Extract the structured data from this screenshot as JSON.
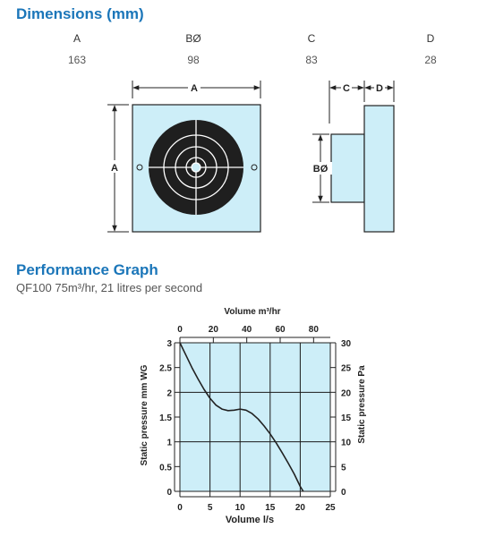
{
  "dimensions": {
    "title": "Dimensions (mm)",
    "headers": [
      "A",
      "BØ",
      "C",
      "D"
    ],
    "values": [
      "163",
      "98",
      "83",
      "28"
    ]
  },
  "drawing": {
    "front_label_top": "A",
    "front_label_side": "A",
    "side_label_c": "C",
    "side_label_d": "D",
    "side_label_b": "BØ"
  },
  "performance": {
    "title": "Performance Graph",
    "subtitle": "QF100 75m³/hr, 21 litres per second"
  },
  "chart_data": {
    "type": "line",
    "title": "",
    "xlabel": "Volume l/s",
    "x2label": "Volume m³/hr",
    "ylabel": "Static pressure mm WG",
    "y2label": "Static pressure Pa",
    "xlim": [
      0,
      25
    ],
    "ylim": [
      0,
      3
    ],
    "x2lim": [
      0,
      90
    ],
    "y2lim": [
      0,
      30
    ],
    "x_ticks": [
      "0",
      "5",
      "10",
      "15",
      "20",
      "25"
    ],
    "x2_ticks": [
      "0",
      "20",
      "40",
      "60",
      "80"
    ],
    "y_ticks": [
      "0",
      "0.5",
      "1",
      "1.5",
      "2",
      "2.5",
      "3"
    ],
    "y2_ticks": [
      "0",
      "5",
      "10",
      "15",
      "20",
      "25",
      "30"
    ],
    "grid": true,
    "colors": {
      "plot_bg": "#cdeef8",
      "curve": "#222222",
      "grid": "#1a1a1a"
    },
    "series": [
      {
        "x": [
          0,
          1,
          2,
          3,
          4,
          5,
          6,
          7,
          8,
          9,
          10,
          11,
          12,
          13,
          14,
          15,
          16,
          17,
          18,
          19,
          20,
          20.5
        ],
        "y": [
          3.0,
          2.75,
          2.5,
          2.27,
          2.06,
          1.88,
          1.74,
          1.66,
          1.63,
          1.64,
          1.66,
          1.64,
          1.57,
          1.46,
          1.32,
          1.16,
          0.98,
          0.78,
          0.57,
          0.35,
          0.1,
          0.0
        ]
      }
    ]
  }
}
